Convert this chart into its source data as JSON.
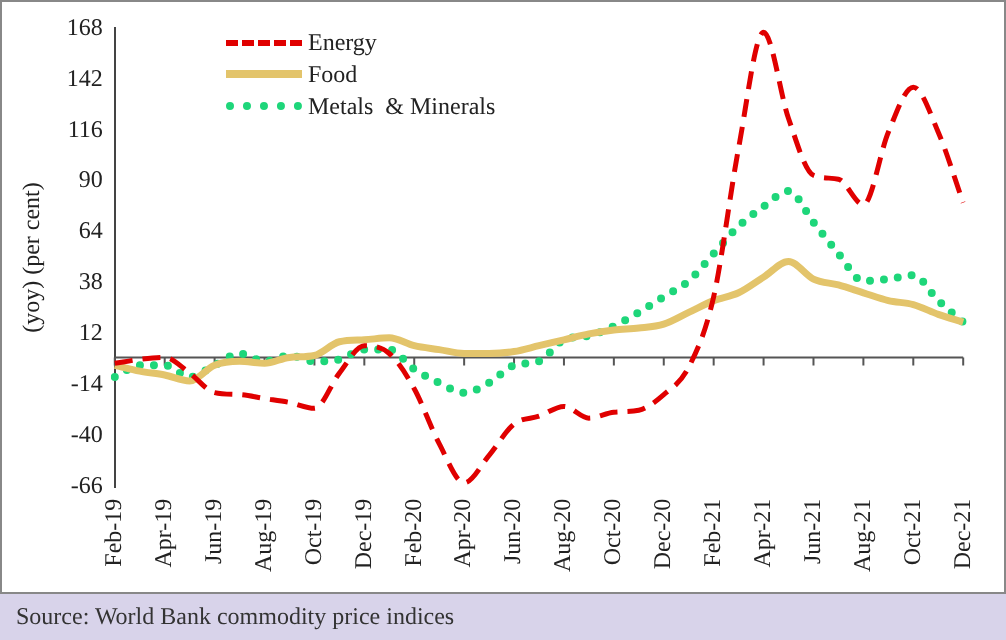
{
  "chart_data": {
    "type": "line",
    "ylabel": "(yoy) (per cent)",
    "categories": [
      "Feb-19",
      null,
      "Apr-19",
      null,
      "Jun-19",
      null,
      "Aug-19",
      null,
      "Oct-19",
      null,
      "Dec-19",
      null,
      "Feb-20",
      null,
      "Apr-20",
      null,
      "Jun-20",
      null,
      "Aug-20",
      null,
      "Oct-20",
      null,
      "Dec-20",
      null,
      "Feb-21",
      null,
      "Apr-21",
      null,
      "Jun-21",
      null,
      "Aug-21",
      null,
      "Oct-21",
      null,
      "Dec-21"
    ],
    "series": [
      {
        "name": "Energy",
        "color": "#e00000",
        "line_style": "dashed",
        "values": [
          -3,
          -1,
          0,
          -8,
          -18,
          -19,
          -21,
          -23,
          -26,
          -8,
          6,
          2,
          -16,
          -44,
          -64,
          -50,
          -34,
          -30,
          -25,
          -31,
          -28,
          -27,
          -19,
          -5,
          31,
          107,
          166,
          122,
          93,
          91,
          78,
          115,
          138,
          115,
          79
        ]
      },
      {
        "name": "Food",
        "color": "#e3c46b",
        "line_style": "solid",
        "values": [
          -4,
          -7,
          -9,
          -12,
          -4,
          -2,
          -3,
          0,
          1,
          8,
          9,
          10,
          6,
          4,
          2,
          2,
          3,
          6,
          9,
          12,
          14,
          15,
          17,
          23,
          29,
          33,
          41,
          49,
          40,
          37,
          33,
          29,
          27,
          22,
          18
        ]
      },
      {
        "name": "Metals  & Minerals",
        "color": "#1ed67a",
        "line_style": "dotted",
        "values": [
          -10,
          -4,
          -4,
          -10,
          -4,
          2,
          -2,
          1,
          -2,
          -1,
          4,
          4,
          -6,
          -13,
          -18,
          -13,
          -4,
          -2,
          9,
          11,
          16,
          23,
          31,
          39,
          53,
          67,
          77,
          85,
          69,
          53,
          39,
          40,
          42,
          29,
          18
        ]
      }
    ],
    "ylim": [
      -66,
      168
    ],
    "yticks": [
      -66,
      -40,
      -14,
      12,
      38,
      64,
      90,
      116,
      142,
      168
    ],
    "ref_lines": [
      {
        "axis": "y",
        "value": 0,
        "color": "#555555"
      }
    ],
    "grid": false,
    "legend": "top left",
    "marker": "none",
    "annotations": [
      "Source: World Bank commodity price indices"
    ]
  }
}
